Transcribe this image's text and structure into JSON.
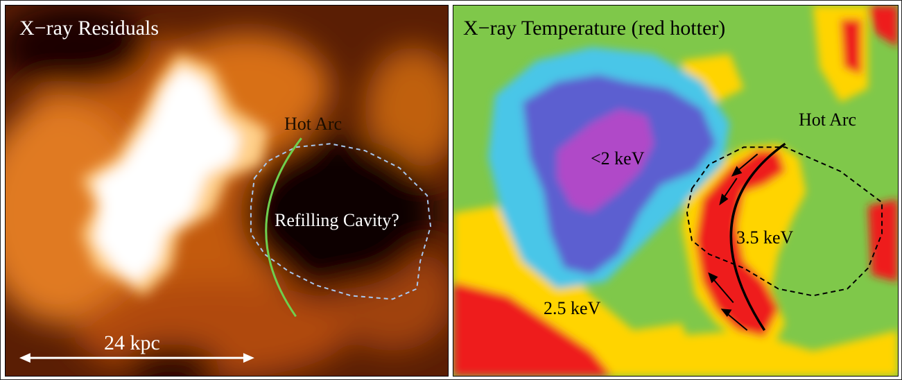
{
  "left_panel": {
    "title": "X−ray Residuals",
    "hot_arc_label": "Hot Arc",
    "cavity_label": "Refilling Cavity?",
    "scale_label": "24 kpc",
    "colors": {
      "background": "#3a1200",
      "bright_core": "#ffffff",
      "glow": "#f08a20",
      "arc_line": "#6fcf4e",
      "cavity_outline": "#a8c8f0"
    }
  },
  "right_panel": {
    "title": "X−ray Temperature (red hotter)",
    "hot_arc_label": "Hot Arc",
    "cool_core_label": "<2 keV",
    "arc_temp_label": "3.5 keV",
    "outer_temp_label": "2.5 keV",
    "colors": {
      "background": "#7fc84a",
      "cool": "#5b5fd0",
      "coolest": "#b04ac8",
      "warm": "#ffd400",
      "hot": "#ee1c1c",
      "cyan": "#4ac6e8"
    }
  }
}
